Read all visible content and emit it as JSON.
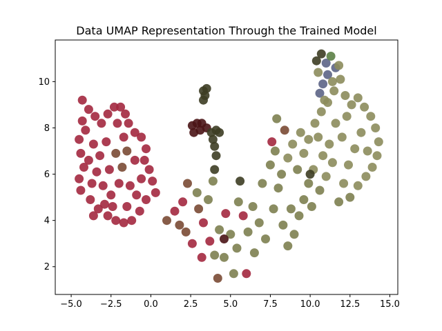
{
  "chart_data": {
    "type": "scatter",
    "title": "Data UMAP Representation Through the Trained Model",
    "xlabel": "",
    "ylabel": "",
    "xlim": [
      -6.0,
      15.5
    ],
    "ylim": [
      0.8,
      11.8
    ],
    "xticks": [
      -5.0,
      -2.5,
      0.0,
      2.5,
      5.0,
      7.5,
      10.0,
      12.5,
      15.0
    ],
    "xtick_labels": [
      "−5.0",
      "−2.5",
      "0.0",
      "2.5",
      "5.0",
      "7.5",
      "10.0",
      "12.5",
      "15.0"
    ],
    "yticks": [
      2,
      4,
      6,
      8,
      10
    ],
    "ytick_labels": [
      "2",
      "4",
      "6",
      "8",
      "10"
    ],
    "grid": false,
    "legend": false,
    "colors": {
      "crimson": "#a3283f",
      "dark_red": "#4a1416",
      "brownish": "#7a4a34",
      "olive": "#7d7f50",
      "olive_light": "#8c8c5c",
      "dark_olive": "#3d3d24",
      "slate_blue": "#5c6486",
      "green": "#5b7f45"
    },
    "points": [
      {
        "x": -4.3,
        "y": 9.2,
        "c": "crimson"
      },
      {
        "x": -3.9,
        "y": 8.8,
        "c": "crimson"
      },
      {
        "x": -3.5,
        "y": 8.5,
        "c": "crimson"
      },
      {
        "x": -3.1,
        "y": 8.2,
        "c": "crimson"
      },
      {
        "x": -2.7,
        "y": 8.6,
        "c": "crimson"
      },
      {
        "x": -2.3,
        "y": 8.9,
        "c": "crimson"
      },
      {
        "x": -1.9,
        "y": 8.9,
        "c": "crimson"
      },
      {
        "x": -1.6,
        "y": 8.6,
        "c": "crimson"
      },
      {
        "x": -1.4,
        "y": 8.2,
        "c": "crimson"
      },
      {
        "x": -1.0,
        "y": 7.8,
        "c": "crimson"
      },
      {
        "x": -0.6,
        "y": 7.6,
        "c": "crimson"
      },
      {
        "x": -0.3,
        "y": 7.1,
        "c": "crimson"
      },
      {
        "x": -0.4,
        "y": 6.6,
        "c": "crimson"
      },
      {
        "x": -0.1,
        "y": 6.2,
        "c": "crimson"
      },
      {
        "x": 0.1,
        "y": 5.7,
        "c": "crimson"
      },
      {
        "x": 0.3,
        "y": 5.2,
        "c": "crimson"
      },
      {
        "x": -0.3,
        "y": 4.9,
        "c": "crimson"
      },
      {
        "x": -0.7,
        "y": 4.4,
        "c": "crimson"
      },
      {
        "x": -1.2,
        "y": 4.0,
        "c": "crimson"
      },
      {
        "x": -1.7,
        "y": 3.9,
        "c": "crimson"
      },
      {
        "x": -2.2,
        "y": 4.0,
        "c": "crimson"
      },
      {
        "x": -2.7,
        "y": 4.2,
        "c": "crimson"
      },
      {
        "x": -3.3,
        "y": 4.5,
        "c": "crimson"
      },
      {
        "x": -3.8,
        "y": 4.9,
        "c": "crimson"
      },
      {
        "x": -4.4,
        "y": 5.3,
        "c": "crimson"
      },
      {
        "x": -4.5,
        "y": 5.8,
        "c": "crimson"
      },
      {
        "x": -4.2,
        "y": 6.3,
        "c": "crimson"
      },
      {
        "x": -4.4,
        "y": 6.9,
        "c": "crimson"
      },
      {
        "x": -4.5,
        "y": 7.5,
        "c": "crimson"
      },
      {
        "x": -4.1,
        "y": 7.9,
        "c": "crimson"
      },
      {
        "x": -4.3,
        "y": 8.3,
        "c": "crimson"
      },
      {
        "x": -3.6,
        "y": 7.3,
        "c": "crimson"
      },
      {
        "x": -3.2,
        "y": 6.8,
        "c": "crimson"
      },
      {
        "x": -2.8,
        "y": 7.4,
        "c": "crimson"
      },
      {
        "x": -3.4,
        "y": 6.1,
        "c": "crimson"
      },
      {
        "x": -3.0,
        "y": 5.5,
        "c": "crimson"
      },
      {
        "x": -2.5,
        "y": 5.1,
        "c": "crimson"
      },
      {
        "x": -2.0,
        "y": 5.6,
        "c": "crimson"
      },
      {
        "x": -1.8,
        "y": 6.3,
        "c": "brownish"
      },
      {
        "x": -2.2,
        "y": 6.9,
        "c": "brownish"
      },
      {
        "x": -2.6,
        "y": 6.2,
        "c": "crimson"
      },
      {
        "x": -1.5,
        "y": 7.0,
        "c": "brownish"
      },
      {
        "x": -1.3,
        "y": 5.5,
        "c": "crimson"
      },
      {
        "x": -1.0,
        "y": 6.6,
        "c": "crimson"
      },
      {
        "x": -2.9,
        "y": 4.7,
        "c": "crimson"
      },
      {
        "x": -3.7,
        "y": 5.6,
        "c": "crimson"
      },
      {
        "x": -1.5,
        "y": 4.6,
        "c": "crimson"
      },
      {
        "x": -0.9,
        "y": 5.1,
        "c": "crimson"
      },
      {
        "x": -1.7,
        "y": 7.6,
        "c": "crimson"
      },
      {
        "x": -3.9,
        "y": 6.6,
        "c": "crimson"
      },
      {
        "x": -2.1,
        "y": 8.2,
        "c": "crimson"
      },
      {
        "x": -2.4,
        "y": 4.6,
        "c": "crimson"
      },
      {
        "x": -0.6,
        "y": 5.8,
        "c": "crimson"
      },
      {
        "x": -3.6,
        "y": 4.2,
        "c": "crimson"
      },
      {
        "x": 1.0,
        "y": 4.0,
        "c": "brownish"
      },
      {
        "x": 1.5,
        "y": 4.4,
        "c": "crimson"
      },
      {
        "x": 1.8,
        "y": 3.8,
        "c": "brownish"
      },
      {
        "x": 2.2,
        "y": 3.5,
        "c": "brownish"
      },
      {
        "x": 2.6,
        "y": 3.0,
        "c": "crimson"
      },
      {
        "x": 3.0,
        "y": 4.5,
        "c": "brownish"
      },
      {
        "x": 3.3,
        "y": 3.9,
        "c": "crimson"
      },
      {
        "x": 3.7,
        "y": 3.1,
        "c": "crimson"
      },
      {
        "x": 4.0,
        "y": 2.5,
        "c": "olive"
      },
      {
        "x": 4.3,
        "y": 3.6,
        "c": "olive"
      },
      {
        "x": 4.7,
        "y": 4.3,
        "c": "crimson"
      },
      {
        "x": 5.0,
        "y": 3.4,
        "c": "olive"
      },
      {
        "x": 4.6,
        "y": 2.4,
        "c": "olive"
      },
      {
        "x": 5.4,
        "y": 2.8,
        "c": "olive"
      },
      {
        "x": 5.8,
        "y": 4.2,
        "c": "crimson"
      },
      {
        "x": 6.1,
        "y": 3.5,
        "c": "olive"
      },
      {
        "x": 6.4,
        "y": 4.6,
        "c": "olive"
      },
      {
        "x": 5.2,
        "y": 1.7,
        "c": "olive"
      },
      {
        "x": 4.2,
        "y": 1.5,
        "c": "brownish"
      },
      {
        "x": 3.6,
        "y": 4.9,
        "c": "olive"
      },
      {
        "x": 2.3,
        "y": 5.6,
        "c": "brownish"
      },
      {
        "x": 2.9,
        "y": 5.2,
        "c": "olive"
      },
      {
        "x": 4.6,
        "y": 3.2,
        "c": "dark_red"
      },
      {
        "x": 5.5,
        "y": 4.8,
        "c": "olive"
      },
      {
        "x": 6.8,
        "y": 3.9,
        "c": "olive"
      },
      {
        "x": 7.2,
        "y": 3.2,
        "c": "olive"
      },
      {
        "x": 3.9,
        "y": 5.7,
        "c": "olive"
      },
      {
        "x": 4.0,
        "y": 6.2,
        "c": "dark_olive"
      },
      {
        "x": 5.6,
        "y": 5.7,
        "c": "dark_olive"
      },
      {
        "x": 6.5,
        "y": 2.6,
        "c": "olive"
      },
      {
        "x": 2.0,
        "y": 4.8,
        "c": "crimson"
      },
      {
        "x": 3.2,
        "y": 2.4,
        "c": "crimson"
      },
      {
        "x": 6.0,
        "y": 1.7,
        "c": "crimson"
      },
      {
        "x": 7.0,
        "y": 5.6,
        "c": "olive"
      },
      {
        "x": 7.5,
        "y": 6.4,
        "c": "olive"
      },
      {
        "x": 7.8,
        "y": 7.0,
        "c": "olive"
      },
      {
        "x": 8.0,
        "y": 5.4,
        "c": "olive"
      },
      {
        "x": 7.7,
        "y": 4.5,
        "c": "olive"
      },
      {
        "x": 8.3,
        "y": 3.8,
        "c": "olive"
      },
      {
        "x": 8.6,
        "y": 2.9,
        "c": "olive"
      },
      {
        "x": 9.0,
        "y": 3.4,
        "c": "olive"
      },
      {
        "x": 9.3,
        "y": 4.2,
        "c": "olive"
      },
      {
        "x": 9.6,
        "y": 4.9,
        "c": "olive"
      },
      {
        "x": 9.9,
        "y": 5.6,
        "c": "olive"
      },
      {
        "x": 10.2,
        "y": 6.2,
        "c": "olive_light"
      },
      {
        "x": 10.6,
        "y": 5.3,
        "c": "olive"
      },
      {
        "x": 11.0,
        "y": 5.9,
        "c": "olive_light"
      },
      {
        "x": 11.4,
        "y": 6.5,
        "c": "olive_light"
      },
      {
        "x": 8.2,
        "y": 6.0,
        "c": "olive"
      },
      {
        "x": 8.6,
        "y": 6.7,
        "c": "olive_light"
      },
      {
        "x": 8.9,
        "y": 7.3,
        "c": "olive_light"
      },
      {
        "x": 9.4,
        "y": 7.8,
        "c": "olive_light"
      },
      {
        "x": 9.9,
        "y": 7.5,
        "c": "olive_light"
      },
      {
        "x": 10.3,
        "y": 8.2,
        "c": "olive_light"
      },
      {
        "x": 10.7,
        "y": 8.7,
        "c": "olive_light"
      },
      {
        "x": 11.1,
        "y": 9.1,
        "c": "olive_light"
      },
      {
        "x": 11.5,
        "y": 9.6,
        "c": "olive_light"
      },
      {
        "x": 11.9,
        "y": 10.1,
        "c": "olive_light"
      },
      {
        "x": 12.2,
        "y": 9.4,
        "c": "olive_light"
      },
      {
        "x": 12.6,
        "y": 9.0,
        "c": "olive_light"
      },
      {
        "x": 13.0,
        "y": 9.3,
        "c": "olive_light"
      },
      {
        "x": 13.4,
        "y": 8.9,
        "c": "olive_light"
      },
      {
        "x": 13.8,
        "y": 8.5,
        "c": "olive_light"
      },
      {
        "x": 14.1,
        "y": 8.0,
        "c": "olive_light"
      },
      {
        "x": 14.3,
        "y": 7.4,
        "c": "olive_light"
      },
      {
        "x": 14.2,
        "y": 6.8,
        "c": "olive_light"
      },
      {
        "x": 13.9,
        "y": 6.3,
        "c": "olive_light"
      },
      {
        "x": 13.5,
        "y": 5.9,
        "c": "olive_light"
      },
      {
        "x": 13.0,
        "y": 5.5,
        "c": "olive_light"
      },
      {
        "x": 12.5,
        "y": 5.0,
        "c": "olive"
      },
      {
        "x": 12.1,
        "y": 5.6,
        "c": "olive_light"
      },
      {
        "x": 12.4,
        "y": 6.4,
        "c": "olive_light"
      },
      {
        "x": 12.8,
        "y": 7.1,
        "c": "olive_light"
      },
      {
        "x": 13.2,
        "y": 7.8,
        "c": "olive_light"
      },
      {
        "x": 12.0,
        "y": 7.6,
        "c": "olive_light"
      },
      {
        "x": 11.6,
        "y": 8.2,
        "c": "olive_light"
      },
      {
        "x": 11.2,
        "y": 7.3,
        "c": "olive_light"
      },
      {
        "x": 10.8,
        "y": 6.8,
        "c": "olive_light"
      },
      {
        "x": 12.3,
        "y": 8.5,
        "c": "olive_light"
      },
      {
        "x": 13.6,
        "y": 7.0,
        "c": "olive_light"
      },
      {
        "x": 10.1,
        "y": 4.6,
        "c": "olive"
      },
      {
        "x": 9.2,
        "y": 6.2,
        "c": "olive"
      },
      {
        "x": 8.8,
        "y": 4.5,
        "c": "olive"
      },
      {
        "x": 9.6,
        "y": 6.9,
        "c": "olive_light"
      },
      {
        "x": 10.5,
        "y": 7.6,
        "c": "olive_light"
      },
      {
        "x": 10.0,
        "y": 6.0,
        "c": "dark_olive"
      },
      {
        "x": 8.4,
        "y": 7.9,
        "c": "brownish"
      },
      {
        "x": 7.9,
        "y": 8.4,
        "c": "olive"
      },
      {
        "x": 7.6,
        "y": 7.4,
        "c": "crimson"
      },
      {
        "x": 11.8,
        "y": 4.8,
        "c": "olive"
      },
      {
        "x": 10.4,
        "y": 10.9,
        "c": "dark_olive"
      },
      {
        "x": 10.7,
        "y": 11.2,
        "c": "dark_olive"
      },
      {
        "x": 11.0,
        "y": 10.8,
        "c": "slate_blue"
      },
      {
        "x": 11.3,
        "y": 11.1,
        "c": "green"
      },
      {
        "x": 11.6,
        "y": 10.6,
        "c": "slate_blue"
      },
      {
        "x": 11.1,
        "y": 10.3,
        "c": "slate_blue"
      },
      {
        "x": 10.8,
        "y": 9.9,
        "c": "slate_blue"
      },
      {
        "x": 10.6,
        "y": 9.5,
        "c": "slate_blue"
      },
      {
        "x": 10.9,
        "y": 9.2,
        "c": "olive_light"
      },
      {
        "x": 11.4,
        "y": 10.0,
        "c": "olive_light"
      },
      {
        "x": 11.8,
        "y": 10.7,
        "c": "olive_light"
      },
      {
        "x": 10.5,
        "y": 10.4,
        "c": "olive_light"
      },
      {
        "x": 3.3,
        "y": 9.6,
        "c": "dark_olive"
      },
      {
        "x": 3.5,
        "y": 9.7,
        "c": "dark_olive"
      },
      {
        "x": 3.4,
        "y": 9.4,
        "c": "dark_olive"
      },
      {
        "x": 3.3,
        "y": 9.2,
        "c": "dark_olive"
      },
      {
        "x": 2.6,
        "y": 8.1,
        "c": "dark_red"
      },
      {
        "x": 2.9,
        "y": 8.2,
        "c": "dark_red"
      },
      {
        "x": 3.2,
        "y": 8.2,
        "c": "dark_red"
      },
      {
        "x": 2.7,
        "y": 7.8,
        "c": "dark_red"
      },
      {
        "x": 3.1,
        "y": 7.9,
        "c": "dark_red"
      },
      {
        "x": 3.5,
        "y": 8.0,
        "c": "dark_red"
      },
      {
        "x": 3.8,
        "y": 7.8,
        "c": "dark_olive"
      },
      {
        "x": 4.1,
        "y": 7.9,
        "c": "dark_olive"
      },
      {
        "x": 4.3,
        "y": 7.8,
        "c": "dark_olive"
      },
      {
        "x": 3.9,
        "y": 7.5,
        "c": "dark_olive"
      },
      {
        "x": 4.0,
        "y": 7.2,
        "c": "dark_olive"
      },
      {
        "x": 4.1,
        "y": 6.8,
        "c": "dark_olive"
      }
    ]
  }
}
